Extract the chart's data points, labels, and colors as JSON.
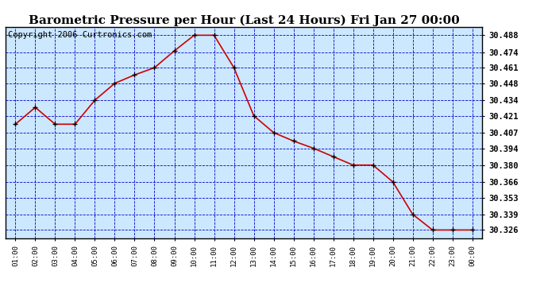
{
  "title": "Barometric Pressure per Hour (Last 24 Hours) Fri Jan 27 00:00",
  "copyright": "Copyright 2006 Curtronics.com",
  "hours": [
    "01:00",
    "02:00",
    "03:00",
    "04:00",
    "05:00",
    "06:00",
    "07:00",
    "08:00",
    "09:00",
    "10:00",
    "11:00",
    "12:00",
    "13:00",
    "14:00",
    "15:00",
    "16:00",
    "17:00",
    "18:00",
    "19:00",
    "20:00",
    "21:00",
    "22:00",
    "23:00",
    "00:00"
  ],
  "values": [
    30.414,
    30.428,
    30.414,
    30.414,
    30.434,
    30.448,
    30.455,
    30.461,
    30.475,
    30.488,
    30.488,
    30.461,
    30.421,
    30.407,
    30.4,
    30.394,
    30.387,
    30.38,
    30.38,
    30.366,
    30.339,
    30.326,
    30.326,
    30.326
  ],
  "yticks": [
    30.488,
    30.474,
    30.461,
    30.448,
    30.434,
    30.421,
    30.407,
    30.394,
    30.38,
    30.366,
    30.353,
    30.339,
    30.326
  ],
  "ymin": 30.319,
  "ymax": 30.495,
  "line_color": "#cc0000",
  "marker_color": "#000000",
  "plot_bg_color": "#cce8ff",
  "fig_bg_color": "#ffffff",
  "grid_color": "#0000cc",
  "title_fontsize": 11,
  "copyright_fontsize": 7.5
}
